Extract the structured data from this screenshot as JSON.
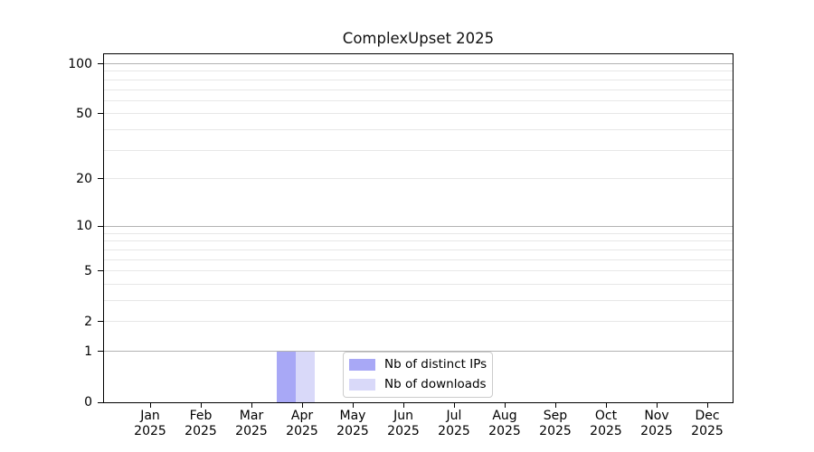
{
  "title": "ComplexUpset 2025",
  "chart_data": {
    "type": "bar",
    "title": "ComplexUpset 2025",
    "x_categories": [
      "Jan",
      "Feb",
      "Mar",
      "Apr",
      "May",
      "Jun",
      "Jul",
      "Aug",
      "Sep",
      "Oct",
      "Nov",
      "Dec"
    ],
    "x_year": "2025",
    "series": [
      {
        "name": "Nb of distinct IPs",
        "color": "#a8a8f6",
        "values": [
          0,
          0,
          0,
          1,
          0,
          0,
          0,
          0,
          0,
          0,
          0,
          0
        ]
      },
      {
        "name": "Nb of downloads",
        "color": "#d9d9f9",
        "values": [
          0,
          0,
          0,
          1,
          0,
          0,
          0,
          0,
          0,
          0,
          0,
          0
        ]
      }
    ],
    "y_scale": "log1p",
    "ylim": [
      0,
      114
    ],
    "y_tick_values": [
      0,
      1,
      2,
      5,
      10,
      20,
      50,
      100
    ],
    "y_tick_labels": [
      "0",
      "1",
      "2",
      "5",
      "10",
      "20",
      "50",
      "100"
    ],
    "y_major_gridlines": [
      1,
      10,
      100
    ],
    "y_minor_gridlines": [
      2,
      3,
      4,
      5,
      6,
      7,
      8,
      9,
      20,
      30,
      40,
      50,
      60,
      70,
      80,
      90
    ],
    "grid": true,
    "legend_position": "inside-bottom-center"
  },
  "colors": {
    "background": "#ffffff",
    "axis_spine": "#000000",
    "major_gridline": "#b2b2b2",
    "minor_gridline": "#e7e7e7",
    "legend_border": "#cccccc",
    "bar_distinct_ips": "#a8a8f6",
    "bar_downloads": "#d9d9f9"
  }
}
